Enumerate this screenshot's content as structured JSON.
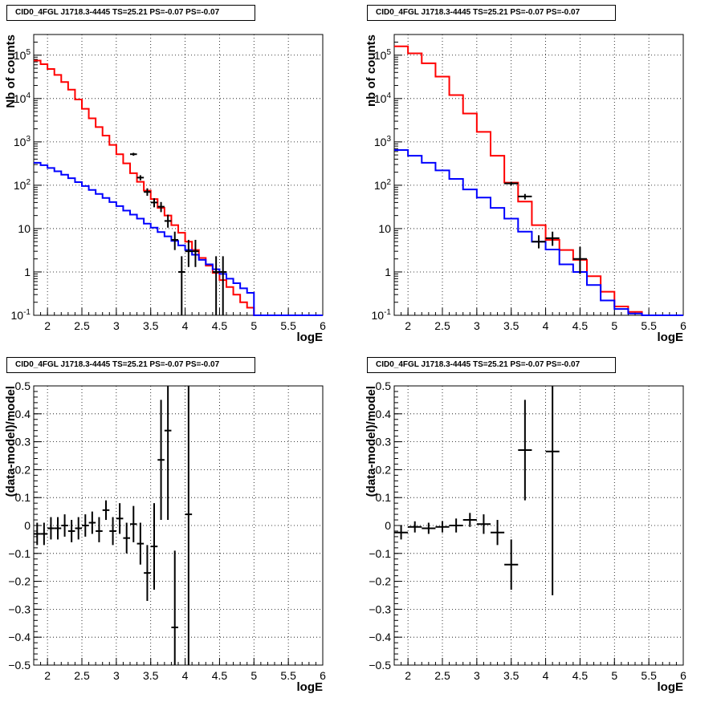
{
  "chart_data": [
    {
      "type": "line",
      "title": "CID0_4FGL J1718.3-4445 TS=25.21 PS=-0.07 PS=-0.07",
      "xlabel": "logE",
      "ylabel": "Nb of counts",
      "log_y": true,
      "xlim": [
        1.8,
        6.0
      ],
      "ylim": [
        0.1,
        300000
      ],
      "grid": true,
      "x_ticks": [
        "2",
        "2.5",
        "3",
        "3.5",
        "4",
        "4.5",
        "5",
        "5.5",
        "6"
      ],
      "y_ticks": [
        "10^-1",
        "1",
        "10",
        "10^2",
        "10^3",
        "10^4",
        "10^5"
      ],
      "step_edges": [
        1.8,
        1.9,
        2.0,
        2.1,
        2.2,
        2.3,
        2.4,
        2.5,
        2.6,
        2.7,
        2.8,
        2.9,
        3.0,
        3.1,
        3.2,
        3.3,
        3.4,
        3.5,
        3.6,
        3.7,
        3.8,
        3.9,
        4.0,
        4.1,
        4.2,
        4.3,
        4.4,
        4.5,
        4.6,
        4.7,
        4.8,
        4.9,
        5.0
      ],
      "series": [
        {
          "color": "#ff0000",
          "values": [
            75000,
            62000,
            48000,
            35000,
            24000,
            16000,
            9500,
            5800,
            3500,
            2200,
            1400,
            850,
            520,
            320,
            190,
            120,
            75,
            48,
            30,
            20,
            12,
            8,
            5,
            3.2,
            2.1,
            1.4,
            0.95,
            0.65,
            0.45,
            0.3,
            0.2,
            0.15
          ]
        },
        {
          "color": "#0000ff",
          "values": [
            330,
            290,
            250,
            210,
            175,
            145,
            118,
            96,
            78,
            63,
            51,
            41,
            33,
            26,
            21,
            17,
            13,
            10.5,
            8.3,
            6.6,
            5.2,
            4.1,
            3.2,
            2.5,
            1.9,
            1.5,
            1.15,
            0.9,
            0.7,
            0.55,
            0.42,
            0.33
          ]
        }
      ],
      "points": [
        {
          "x": 3.25,
          "y": 520,
          "ex": 0.05,
          "yl": 480,
          "yh": 560
        },
        {
          "x": 3.35,
          "y": 150,
          "ex": 0.05,
          "yl": 130,
          "yh": 170
        },
        {
          "x": 3.45,
          "y": 70,
          "ex": 0.05,
          "yl": 57,
          "yh": 85
        },
        {
          "x": 3.55,
          "y": 40,
          "ex": 0.05,
          "yl": 31,
          "yh": 50
        },
        {
          "x": 3.65,
          "y": 32,
          "ex": 0.05,
          "yl": 24,
          "yh": 41
        },
        {
          "x": 3.75,
          "y": 15,
          "ex": 0.05,
          "yl": 10.5,
          "yh": 21
        },
        {
          "x": 3.85,
          "y": 5.5,
          "ex": 0.05,
          "yl": 3.2,
          "yh": 8.5
        },
        {
          "x": 3.95,
          "y": 1.0,
          "ex": 0.05,
          "yl": 0.1,
          "yh": 2.3
        },
        {
          "x": 4.05,
          "y": 3.0,
          "ex": 0.05,
          "yl": 1.3,
          "yh": 5.5
        },
        {
          "x": 4.15,
          "y": 3.0,
          "ex": 0.05,
          "yl": 1.3,
          "yh": 5.5
        },
        {
          "x": 4.45,
          "y": 1.0,
          "ex": 0.05,
          "yl": 0.1,
          "yh": 2.3
        },
        {
          "x": 4.55,
          "y": 1.0,
          "ex": 0.05,
          "yl": 0.1,
          "yh": 2.3
        }
      ]
    },
    {
      "type": "line",
      "title": "CID0_4FGL J1718.3-4445 TS=25.21 PS=-0.07 PS=-0.07",
      "xlabel": "logE",
      "ylabel": "nb of counts",
      "log_y": true,
      "xlim": [
        1.8,
        6.0
      ],
      "ylim": [
        0.1,
        300000
      ],
      "grid": true,
      "x_ticks": [
        "2",
        "2.5",
        "3",
        "3.5",
        "4",
        "4.5",
        "5",
        "5.5",
        "6"
      ],
      "y_ticks": [
        "10^-1",
        "1",
        "10",
        "10^2",
        "10^3",
        "10^4",
        "10^5"
      ],
      "step_edges": [
        1.8,
        2.0,
        2.2,
        2.4,
        2.6,
        2.8,
        3.0,
        3.2,
        3.4,
        3.6,
        3.8,
        4.0,
        4.2,
        4.4,
        4.6,
        4.8,
        5.0,
        5.2,
        5.4
      ],
      "series": [
        {
          "color": "#ff0000",
          "values": [
            160000,
            110000,
            65000,
            32000,
            12000,
            4500,
            1700,
            480,
            115,
            42,
            12,
            5.5,
            3.2,
            1.9,
            0.8,
            0.35,
            0.16,
            0.12
          ]
        },
        {
          "color": "#0000ff",
          "values": [
            650,
            480,
            330,
            220,
            140,
            80,
            52,
            30,
            17,
            8.5,
            5,
            3.3,
            1.5,
            1.0,
            0.5,
            0.22,
            0.14,
            0.11
          ]
        }
      ],
      "points": [
        {
          "x": 3.5,
          "y": 110,
          "ex": 0.1,
          "yl": 100,
          "yh": 120
        },
        {
          "x": 3.7,
          "y": 55,
          "ex": 0.1,
          "yl": 47,
          "yh": 63
        },
        {
          "x": 3.9,
          "y": 5.0,
          "ex": 0.1,
          "yl": 3.5,
          "yh": 7.0
        },
        {
          "x": 4.1,
          "y": 6.0,
          "ex": 0.1,
          "yl": 4.0,
          "yh": 8.5
        },
        {
          "x": 4.5,
          "y": 2.0,
          "ex": 0.1,
          "yl": 0.9,
          "yh": 3.8
        }
      ]
    },
    {
      "type": "scatter",
      "title": "CID0_4FGL J1718.3-4445 TS=25.21 PS=-0.07 PS=-0.07",
      "xlabel": "logE",
      "ylabel": "(data-model)/model",
      "log_y": false,
      "xlim": [
        1.8,
        6.0
      ],
      "ylim": [
        -0.5,
        0.5
      ],
      "grid": true,
      "x_ticks": [
        "2",
        "2.5",
        "3",
        "3.5",
        "4",
        "4.5",
        "5",
        "5.5",
        "6"
      ],
      "y_ticks": [
        "−0.5",
        "−0.4",
        "−0.3",
        "−0.2",
        "−0.1",
        "0",
        "0.1",
        "0.2",
        "0.3",
        "0.4",
        "0.5"
      ],
      "points": [
        {
          "x": 1.85,
          "y": -0.03,
          "ex": 0.05,
          "yl": -0.07,
          "yh": 0.01
        },
        {
          "x": 1.95,
          "y": -0.03,
          "ex": 0.05,
          "yl": -0.07,
          "yh": 0.01
        },
        {
          "x": 2.05,
          "y": -0.01,
          "ex": 0.05,
          "yl": -0.05,
          "yh": 0.03
        },
        {
          "x": 2.15,
          "y": -0.01,
          "ex": 0.05,
          "yl": -0.05,
          "yh": 0.03
        },
        {
          "x": 2.25,
          "y": 0.0,
          "ex": 0.05,
          "yl": -0.04,
          "yh": 0.04
        },
        {
          "x": 2.35,
          "y": -0.02,
          "ex": 0.05,
          "yl": -0.06,
          "yh": 0.02
        },
        {
          "x": 2.45,
          "y": -0.01,
          "ex": 0.05,
          "yl": -0.05,
          "yh": 0.03
        },
        {
          "x": 2.55,
          "y": 0.0,
          "ex": 0.05,
          "yl": -0.04,
          "yh": 0.04
        },
        {
          "x": 2.65,
          "y": 0.01,
          "ex": 0.05,
          "yl": -0.03,
          "yh": 0.05
        },
        {
          "x": 2.75,
          "y": -0.02,
          "ex": 0.05,
          "yl": -0.06,
          "yh": 0.03
        },
        {
          "x": 2.85,
          "y": 0.055,
          "ex": 0.05,
          "yl": 0.02,
          "yh": 0.09
        },
        {
          "x": 2.95,
          "y": -0.02,
          "ex": 0.05,
          "yl": -0.07,
          "yh": 0.03
        },
        {
          "x": 3.05,
          "y": 0.025,
          "ex": 0.05,
          "yl": -0.03,
          "yh": 0.08
        },
        {
          "x": 3.15,
          "y": -0.045,
          "ex": 0.05,
          "yl": -0.1,
          "yh": 0.01
        },
        {
          "x": 3.25,
          "y": 0.005,
          "ex": 0.05,
          "yl": -0.06,
          "yh": 0.07
        },
        {
          "x": 3.35,
          "y": -0.065,
          "ex": 0.05,
          "yl": -0.14,
          "yh": 0.01
        },
        {
          "x": 3.45,
          "y": -0.17,
          "ex": 0.05,
          "yl": -0.27,
          "yh": -0.07
        },
        {
          "x": 3.55,
          "y": -0.075,
          "ex": 0.05,
          "yl": -0.23,
          "yh": 0.08
        },
        {
          "x": 3.65,
          "y": 0.235,
          "ex": 0.05,
          "yl": 0.02,
          "yh": 0.45
        },
        {
          "x": 3.75,
          "y": 0.34,
          "ex": 0.05,
          "yl": 0.02,
          "yh": 0.5
        },
        {
          "x": 3.85,
          "y": -0.365,
          "ex": 0.05,
          "yl": -0.5,
          "yh": -0.09
        },
        {
          "x": 4.05,
          "y": 0.04,
          "ex": 0.05,
          "yl": -0.5,
          "yh": 0.5
        }
      ]
    },
    {
      "type": "scatter",
      "title": "CID0_4FGL J1718.3-4445 TS=25.21 PS=-0.07 PS=-0.07",
      "xlabel": "logE",
      "ylabel": "(data-model)/model",
      "log_y": false,
      "xlim": [
        1.8,
        6.0
      ],
      "ylim": [
        -0.5,
        0.5
      ],
      "grid": true,
      "x_ticks": [
        "2",
        "2.5",
        "3",
        "3.5",
        "4",
        "4.5",
        "5",
        "5.5",
        "6"
      ],
      "y_ticks": [
        "−0.5",
        "−0.4",
        "−0.3",
        "−0.2",
        "−0.1",
        "0",
        "0.1",
        "0.2",
        "0.3",
        "0.4",
        "0.5"
      ],
      "points": [
        {
          "x": 1.9,
          "y": -0.025,
          "ex": 0.1,
          "yl": -0.05,
          "yh": 0.0
        },
        {
          "x": 2.1,
          "y": -0.005,
          "ex": 0.1,
          "yl": -0.025,
          "yh": 0.015
        },
        {
          "x": 2.3,
          "y": -0.01,
          "ex": 0.1,
          "yl": -0.03,
          "yh": 0.01
        },
        {
          "x": 2.5,
          "y": -0.005,
          "ex": 0.1,
          "yl": -0.025,
          "yh": 0.015
        },
        {
          "x": 2.7,
          "y": 0.0,
          "ex": 0.1,
          "yl": -0.025,
          "yh": 0.025
        },
        {
          "x": 2.9,
          "y": 0.02,
          "ex": 0.1,
          "yl": -0.005,
          "yh": 0.045
        },
        {
          "x": 3.1,
          "y": 0.005,
          "ex": 0.1,
          "yl": -0.03,
          "yh": 0.04
        },
        {
          "x": 3.3,
          "y": -0.025,
          "ex": 0.1,
          "yl": -0.07,
          "yh": 0.02
        },
        {
          "x": 3.5,
          "y": -0.14,
          "ex": 0.1,
          "yl": -0.23,
          "yh": -0.05
        },
        {
          "x": 3.7,
          "y": 0.27,
          "ex": 0.1,
          "yl": 0.09,
          "yh": 0.45
        },
        {
          "x": 4.1,
          "y": 0.265,
          "ex": 0.1,
          "yl": -0.25,
          "yh": 0.5
        }
      ]
    }
  ]
}
